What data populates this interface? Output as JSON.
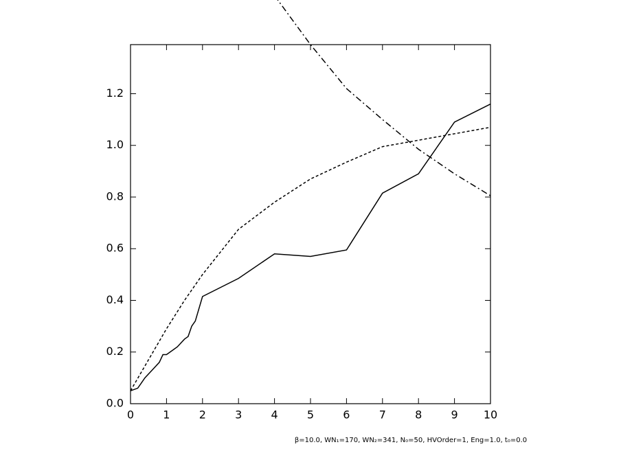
{
  "chart_data": {
    "type": "line",
    "annotation": "β=10.0, WN₁=170, WN₂=341, N₀=50, HVOrder=1, Eng=1.0, t₀=0.0",
    "xlim": [
      0,
      10
    ],
    "xticks": [
      0,
      1,
      2,
      3,
      4,
      5,
      6,
      7,
      8,
      9,
      10
    ],
    "ylim": [
      0,
      1.39
    ],
    "yticks": [
      {
        "value": 0,
        "label": "0.0"
      },
      0.2,
      0.4,
      0.6,
      0.8,
      {
        "value": 1,
        "label": "1.0"
      },
      1.2
    ],
    "series": [
      {
        "color": "#000000",
        "dash": "solid",
        "x": [
          0,
          0.2,
          0.3,
          0.4,
          0.6,
          0.8,
          0.9,
          1.0,
          1.2,
          1.3,
          1.5,
          1.6,
          1.7,
          1.8,
          2,
          3,
          4,
          5,
          6,
          7,
          8,
          9,
          10
        ],
        "values": [
          0.05,
          0.06,
          0.08,
          0.1,
          0.13,
          0.16,
          0.19,
          0.19,
          0.21,
          0.22,
          0.25,
          0.26,
          0.3,
          0.32,
          0.415,
          0.485,
          0.58,
          0.57,
          0.595,
          0.815,
          0.89,
          1.09,
          1.16
        ]
      },
      {
        "color": "#000000",
        "dash": "dashed",
        "x": [
          0,
          0.5,
          1,
          1.5,
          2,
          3,
          4,
          5,
          6,
          7,
          8,
          9,
          10
        ],
        "values": [
          0.05,
          0.17,
          0.29,
          0.4,
          0.5,
          0.675,
          0.78,
          0.87,
          0.935,
          0.995,
          1.02,
          1.045,
          1.07
        ]
      },
      {
        "color": "#000000",
        "dash": "dashdot",
        "x": [
          4,
          5,
          6,
          7,
          8,
          9,
          10
        ],
        "values": [
          1.58,
          1.39,
          1.22,
          1.1,
          0.985,
          0.89,
          0.805
        ]
      }
    ]
  }
}
